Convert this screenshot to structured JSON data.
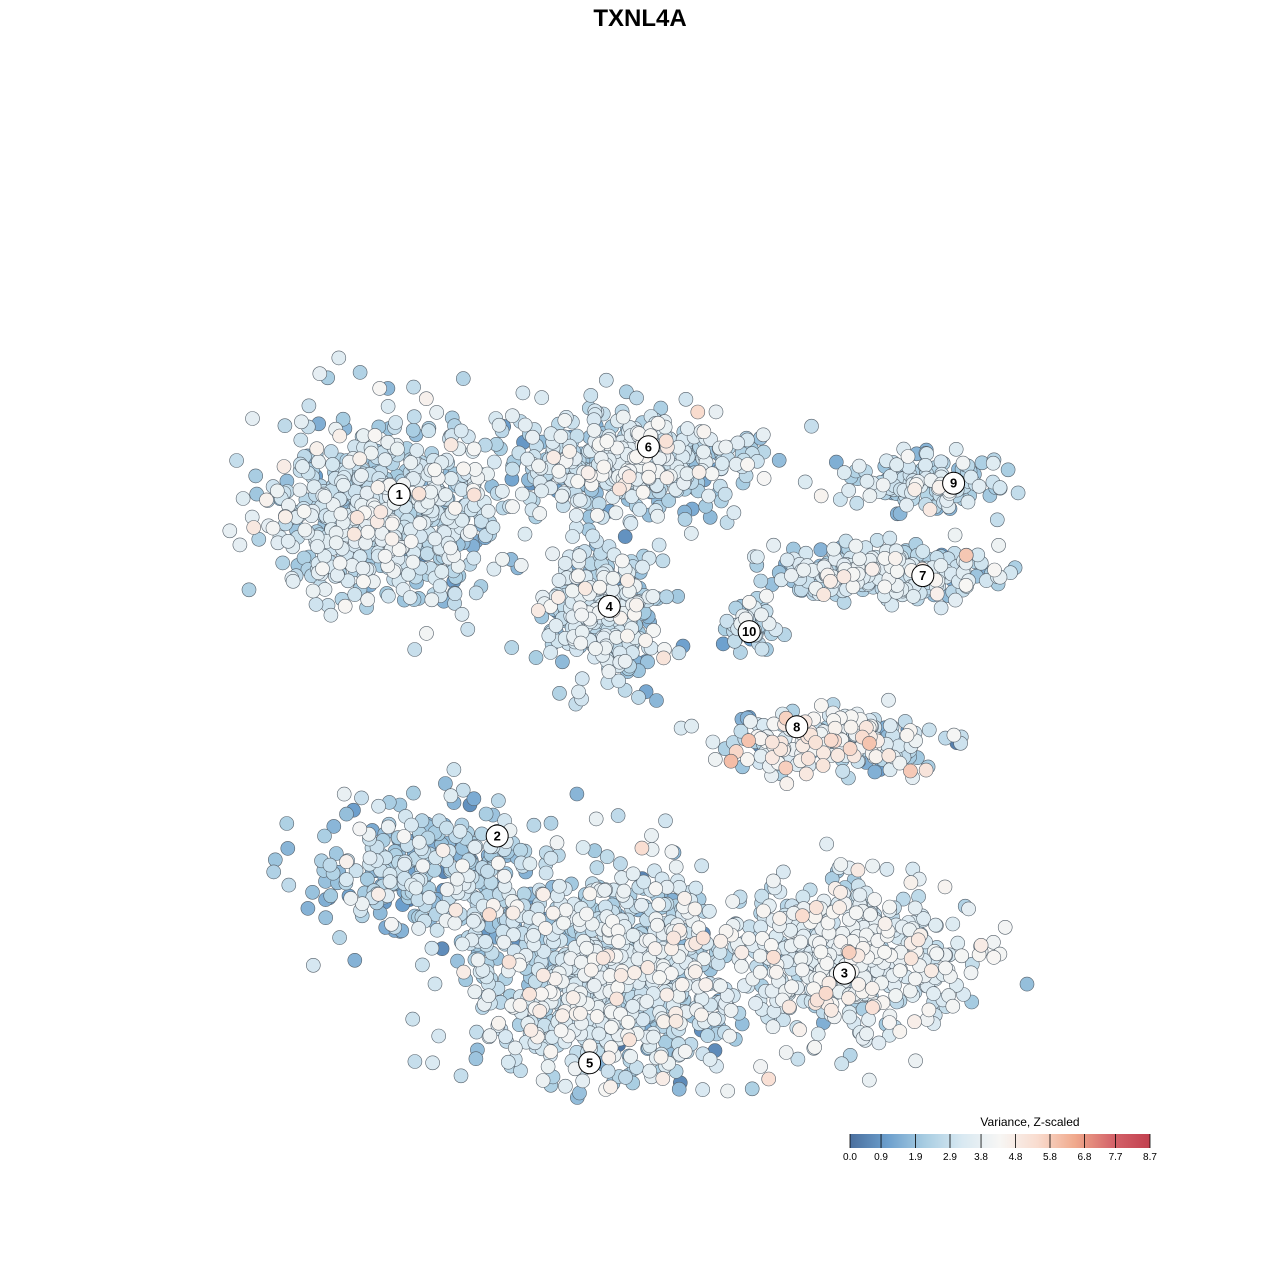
{
  "chart_data": {
    "type": "scatter",
    "title": "TXNL4A",
    "xlabel": "",
    "ylabel": "",
    "color_scale": {
      "title": "Variance, Z-scaled",
      "ticks": [
        "0.0",
        "0.9",
        "1.9",
        "2.9",
        "3.8",
        "4.8",
        "5.8",
        "6.8",
        "7.7",
        "8.7"
      ],
      "min": 0.0,
      "max": 8.7,
      "colors": [
        "#4a6f9e",
        "#6c9fcd",
        "#a8cde2",
        "#d9e9f2",
        "#f7f6f4",
        "#f9dccf",
        "#f0a98c",
        "#d4646a",
        "#c2404f"
      ],
      "placement": "bottom-right"
    },
    "clusters": [
      {
        "label": "1",
        "x": -8.6,
        "y": 5.2,
        "cx": -9.0,
        "cy": 4.6,
        "sx": 4.0,
        "sy": 3.4,
        "n": 700,
        "mean": 2.9,
        "sd": 0.8
      },
      {
        "label": "6",
        "x": 0.3,
        "y": 6.9,
        "cx": -0.5,
        "cy": 6.3,
        "sx": 4.2,
        "sy": 1.9,
        "n": 520,
        "mean": 3.0,
        "sd": 0.8
      },
      {
        "label": "4",
        "x": -1.1,
        "y": 1.2,
        "cx": -1.4,
        "cy": 1.0,
        "sx": 2.1,
        "sy": 2.5,
        "n": 330,
        "mean": 2.8,
        "sd": 0.9
      },
      {
        "label": "10",
        "x": 3.9,
        "y": 0.3,
        "cx": 3.9,
        "cy": 0.4,
        "sx": 0.8,
        "sy": 1.0,
        "n": 60,
        "mean": 2.4,
        "sd": 0.7
      },
      {
        "label": "9",
        "x": 11.2,
        "y": 5.6,
        "cx": 10.2,
        "cy": 5.6,
        "sx": 2.6,
        "sy": 1.0,
        "n": 160,
        "mean": 2.8,
        "sd": 0.8
      },
      {
        "label": "7",
        "x": 10.1,
        "y": 2.3,
        "cx": 8.6,
        "cy": 2.4,
        "sx": 4.2,
        "sy": 0.9,
        "n": 300,
        "mean": 2.9,
        "sd": 0.8
      },
      {
        "label": "8",
        "x": 5.6,
        "y": -3.1,
        "cx": 6.8,
        "cy": -3.6,
        "sx": 3.8,
        "sy": 1.1,
        "n": 230,
        "mean": 3.4,
        "sd": 1.2
      },
      {
        "label": "2",
        "x": -5.1,
        "y": -7.0,
        "cx": -7.5,
        "cy": -8.2,
        "sx": 4.1,
        "sy": 2.4,
        "n": 320,
        "mean": 2.5,
        "sd": 0.8
      },
      {
        "label": "3",
        "x": 7.3,
        "y": -11.9,
        "cx": 7.4,
        "cy": -11.3,
        "sx": 4.1,
        "sy": 2.6,
        "n": 520,
        "mean": 3.5,
        "sd": 0.7
      },
      {
        "label": "5",
        "x": -1.8,
        "y": -15.1,
        "cx": -1.2,
        "cy": -12.0,
        "sx": 5.2,
        "sy": 3.9,
        "n": 900,
        "mean": 3.0,
        "sd": 0.9
      }
    ]
  }
}
